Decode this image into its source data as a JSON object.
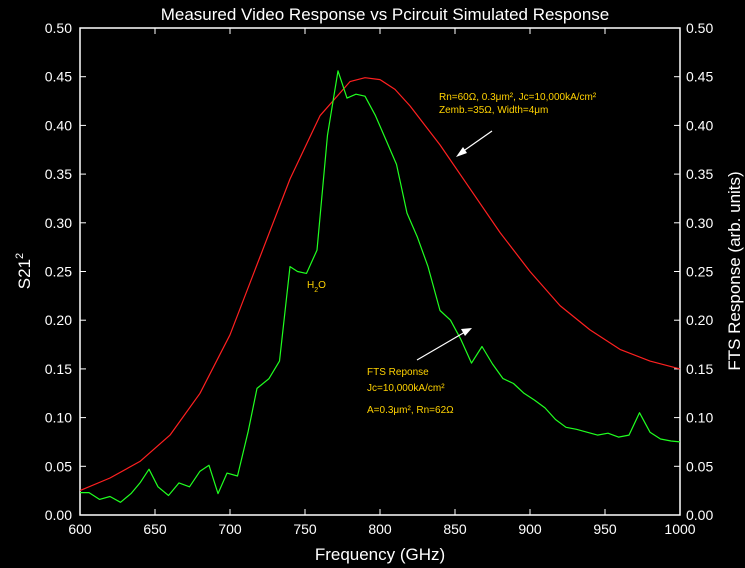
{
  "chart_data": {
    "type": "line",
    "title": "Measured Video Response vs Pcircuit Simulated Response",
    "xlabel": "Frequency (GHz)",
    "ylabel_left_base": "S21",
    "ylabel_left_sup": "2",
    "ylabel_right": "FTS Response (arb. units)",
    "xlim": [
      600,
      1000
    ],
    "ylim": [
      0,
      0.5
    ],
    "xticks": [
      600,
      650,
      700,
      750,
      800,
      850,
      900,
      950,
      1000
    ],
    "yticks": [
      0.0,
      0.05,
      0.1,
      0.15,
      0.2,
      0.25,
      0.3,
      0.35,
      0.4,
      0.45,
      0.5
    ],
    "grid": false,
    "series": [
      {
        "color": "#ff2020",
        "x": [
          600,
          620,
          640,
          660,
          680,
          700,
          720,
          740,
          760,
          780,
          790,
          800,
          810,
          820,
          840,
          860,
          880,
          900,
          920,
          940,
          960,
          980,
          1000
        ],
        "y": [
          0.025,
          0.038,
          0.055,
          0.082,
          0.125,
          0.185,
          0.265,
          0.345,
          0.41,
          0.445,
          0.449,
          0.447,
          0.437,
          0.42,
          0.38,
          0.335,
          0.29,
          0.25,
          0.215,
          0.19,
          0.17,
          0.158,
          0.15
        ]
      },
      {
        "color": "#20ff20",
        "x": [
          600,
          606,
          613,
          620,
          627,
          634,
          640,
          646,
          652,
          659,
          666,
          673,
          680,
          686,
          692,
          698,
          705,
          712,
          718,
          726,
          733,
          740,
          745,
          751,
          758,
          765,
          772,
          778,
          784,
          790,
          797,
          804,
          811,
          818,
          825,
          832,
          840,
          847,
          854,
          861,
          868,
          875,
          882,
          889,
          896,
          903,
          910,
          917,
          924,
          931,
          938,
          945,
          952,
          959,
          966,
          973,
          980,
          987,
          994,
          1000
        ],
        "y": [
          0.023,
          0.023,
          0.016,
          0.019,
          0.013,
          0.022,
          0.033,
          0.047,
          0.029,
          0.02,
          0.033,
          0.029,
          0.045,
          0.051,
          0.022,
          0.043,
          0.04,
          0.085,
          0.13,
          0.14,
          0.158,
          0.255,
          0.25,
          0.248,
          0.272,
          0.39,
          0.456,
          0.428,
          0.432,
          0.43,
          0.41,
          0.385,
          0.36,
          0.31,
          0.285,
          0.255,
          0.21,
          0.2,
          0.18,
          0.156,
          0.173,
          0.155,
          0.14,
          0.135,
          0.125,
          0.118,
          0.11,
          0.098,
          0.09,
          0.088,
          0.085,
          0.082,
          0.084,
          0.08,
          0.082,
          0.105,
          0.085,
          0.078,
          0.076,
          0.075
        ]
      }
    ],
    "annotations": {
      "h2o": {
        "base": "H",
        "sub": "2",
        "tail": "O"
      },
      "sim_line1": "Rn=60Ω, 0.3μm², Jc=10,000kA/cm²",
      "sim_line2": "Zemb.=35Ω, Width=4μm",
      "fts_line1": "FTS Reponse",
      "fts_line2": "Jc=10,000kA/cm²",
      "fts_line3": "A=0.3μm², Rn=62Ω"
    }
  }
}
